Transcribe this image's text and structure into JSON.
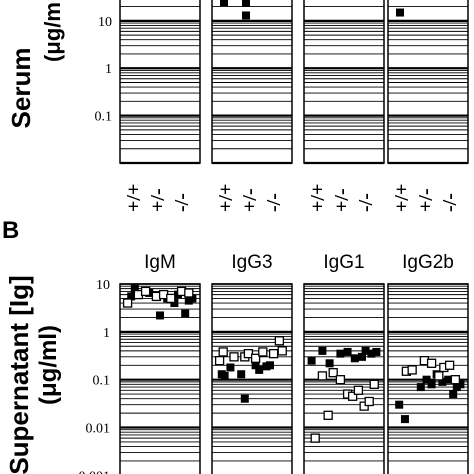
{
  "chart_data": [
    {
      "type": "scatter",
      "panel": "A",
      "ylabel_line1": "Serum",
      "ylabel_line2": "(μg/m",
      "yscale": "log",
      "ylim": [
        0.01,
        60
      ],
      "yticks": [
        "10",
        "1",
        "0.1"
      ],
      "ytick_values": [
        10,
        1,
        0.1
      ],
      "genotypes": [
        "+/+",
        "+/-",
        "-/-"
      ],
      "panels": [
        {
          "points": []
        },
        {
          "points": [
            [
              0,
              25
            ],
            [
              1,
              24
            ],
            [
              1,
              13
            ],
            [
              2,
              45
            ]
          ]
        },
        {
          "points": []
        },
        {
          "points": [
            [
              0,
              15
            ]
          ]
        }
      ]
    },
    {
      "type": "scatter",
      "panel": "B",
      "panel_label": "B",
      "ylabel_line1": "Supernatant [Ig]",
      "ylabel_line2": "(μg/ml)",
      "yscale": "log",
      "ylim": [
        0.0008,
        10
      ],
      "yticks": [
        "10",
        "1",
        "0.1",
        "0.01",
        "0.001"
      ],
      "ytick_values": [
        10,
        1,
        0.1,
        0.01,
        0.001
      ],
      "series": [
        {
          "name": "filled"
        },
        {
          "name": "open"
        }
      ],
      "panels": [
        {
          "title": "IgM",
          "filled": [
            [
              0.1,
              5.5
            ],
            [
              0.15,
              8
            ],
            [
              0.35,
              6.5
            ],
            [
              0.5,
              2.2
            ],
            [
              0.6,
              5
            ],
            [
              0.7,
              4
            ],
            [
              0.75,
              6
            ],
            [
              0.85,
              2.4
            ],
            [
              0.9,
              4.5
            ],
            [
              0.95,
              5
            ]
          ],
          "open": [
            [
              0.05,
              4
            ],
            [
              0.2,
              6
            ],
            [
              0.3,
              7
            ],
            [
              0.45,
              5.5
            ],
            [
              0.55,
              6
            ],
            [
              0.65,
              5
            ],
            [
              0.8,
              7
            ],
            [
              0.9,
              6.5
            ]
          ]
        },
        {
          "title": "IgG3",
          "filled": [
            [
              0.08,
              0.13
            ],
            [
              0.12,
              0.12
            ],
            [
              0.2,
              0.18
            ],
            [
              0.35,
              0.13
            ],
            [
              0.4,
              0.04
            ],
            [
              0.55,
              0.2
            ],
            [
              0.6,
              0.16
            ],
            [
              0.7,
              0.19
            ],
            [
              0.75,
              0.2
            ]
          ],
          "open": [
            [
              0.05,
              0.25
            ],
            [
              0.1,
              0.38
            ],
            [
              0.25,
              0.3
            ],
            [
              0.4,
              0.3
            ],
            [
              0.45,
              0.35
            ],
            [
              0.55,
              0.28
            ],
            [
              0.65,
              0.38
            ],
            [
              0.8,
              0.35
            ],
            [
              0.88,
              0.65
            ],
            [
              0.92,
              0.4
            ]
          ]
        },
        {
          "title": "IgG1",
          "filled": [
            [
              0.05,
              0.25
            ],
            [
              0.2,
              0.4
            ],
            [
              0.3,
              0.22
            ],
            [
              0.45,
              0.35
            ],
            [
              0.55,
              0.38
            ],
            [
              0.65,
              0.28
            ],
            [
              0.75,
              0.3
            ],
            [
              0.8,
              0.4
            ],
            [
              0.88,
              0.35
            ],
            [
              0.95,
              0.38
            ]
          ],
          "open": [
            [
              0.1,
              0.006
            ],
            [
              0.2,
              0.12
            ],
            [
              0.28,
              0.018
            ],
            [
              0.35,
              0.14
            ],
            [
              0.45,
              0.1
            ],
            [
              0.55,
              0.05
            ],
            [
              0.62,
              0.045
            ],
            [
              0.7,
              0.06
            ],
            [
              0.78,
              0.028
            ],
            [
              0.85,
              0.035
            ],
            [
              0.92,
              0.08
            ]
          ]
        },
        {
          "title": "IgG2b",
          "filled": [
            [
              0.1,
              0.03
            ],
            [
              0.18,
              0.015
            ],
            [
              0.4,
              0.07
            ],
            [
              0.48,
              0.1
            ],
            [
              0.55,
              0.08
            ],
            [
              0.62,
              0.13
            ],
            [
              0.7,
              0.09
            ],
            [
              0.78,
              0.1
            ],
            [
              0.85,
              0.05
            ],
            [
              0.9,
              0.07
            ],
            [
              0.95,
              0.08
            ]
          ],
          "open": [
            [
              0.2,
              0.15
            ],
            [
              0.28,
              0.16
            ],
            [
              0.45,
              0.25
            ],
            [
              0.55,
              0.22
            ],
            [
              0.65,
              0.12
            ],
            [
              0.72,
              0.18
            ],
            [
              0.8,
              0.2
            ],
            [
              0.88,
              0.1
            ]
          ]
        }
      ]
    }
  ]
}
